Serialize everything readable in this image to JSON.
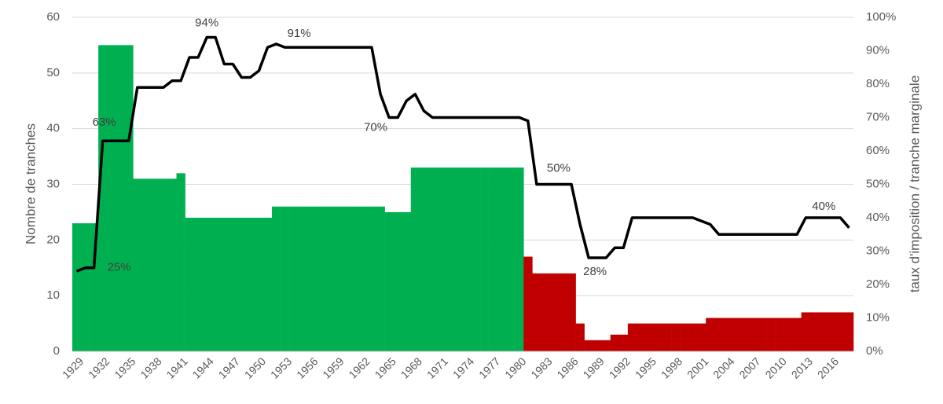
{
  "chart_data": {
    "type": "bar",
    "y_label": "Nombre de tranches",
    "y2_label": "taux d'imposition / tranche marginale",
    "categories": [
      "1929",
      null,
      null,
      "1932",
      null,
      null,
      "1935",
      null,
      null,
      "1938",
      null,
      null,
      "1941",
      null,
      null,
      "1944",
      null,
      null,
      "1947",
      null,
      null,
      "1950",
      null,
      null,
      "1953",
      null,
      null,
      "1956",
      null,
      null,
      "1959",
      null,
      null,
      "1962",
      null,
      null,
      "1965",
      null,
      null,
      "1968",
      null,
      null,
      "1971",
      null,
      null,
      "1974",
      null,
      null,
      "1977",
      null,
      null,
      "1980",
      null,
      null,
      "1983",
      null,
      null,
      "1986",
      null,
      null,
      "1989",
      null,
      null,
      "1992",
      null,
      null,
      "1995",
      null,
      null,
      "1998",
      null,
      null,
      "2001",
      null,
      null,
      "2004",
      null,
      null,
      "2007",
      null,
      null,
      "2010",
      null,
      null,
      "2013",
      null,
      null,
      "2016",
      null,
      null
    ],
    "ylim": [
      0,
      60
    ],
    "yticks": [
      0,
      10,
      20,
      30,
      40,
      50,
      60
    ],
    "y2lim": [
      0,
      100
    ],
    "y2ticks": [
      {
        "value": 0,
        "label": "0%"
      },
      {
        "value": 10,
        "label": "10%"
      },
      {
        "value": 20,
        "label": "20%"
      },
      {
        "value": 30,
        "label": "30%"
      },
      {
        "value": 40,
        "label": "40%"
      },
      {
        "value": 50,
        "label": "50%"
      },
      {
        "value": 60,
        "label": "60%"
      },
      {
        "value": 70,
        "label": "70%"
      },
      {
        "value": 80,
        "label": "80%"
      },
      {
        "value": 90,
        "label": "90%"
      },
      {
        "value": 100,
        "label": "100%"
      }
    ],
    "grid": true,
    "series": [
      {
        "type": "bar",
        "color": "#00b050",
        "values": [
          23,
          23,
          23,
          55,
          55,
          55,
          55,
          31,
          31,
          31,
          31,
          31,
          32,
          24,
          24,
          24,
          24,
          24,
          24,
          24,
          24,
          24,
          24,
          26,
          26,
          26,
          26,
          26,
          26,
          26,
          26,
          26,
          26,
          26,
          26,
          26,
          25,
          25,
          25,
          33,
          33,
          33,
          33,
          33,
          33,
          33,
          33,
          33,
          33,
          33,
          33,
          33,
          null,
          null,
          null,
          null,
          null,
          null,
          null,
          null,
          null,
          null,
          null,
          null,
          null,
          null,
          null,
          null,
          null,
          null,
          null,
          null,
          null,
          null,
          null,
          null,
          null,
          null,
          null,
          null,
          null,
          null,
          null,
          null,
          null,
          null,
          null,
          null,
          null,
          null
        ]
      },
      {
        "type": "bar",
        "color": "#c00000",
        "values": [
          null,
          null,
          null,
          null,
          null,
          null,
          null,
          null,
          null,
          null,
          null,
          null,
          null,
          null,
          null,
          null,
          null,
          null,
          null,
          null,
          null,
          null,
          null,
          null,
          null,
          null,
          null,
          null,
          null,
          null,
          null,
          null,
          null,
          null,
          null,
          null,
          null,
          null,
          null,
          null,
          null,
          null,
          null,
          null,
          null,
          null,
          null,
          null,
          null,
          null,
          null,
          null,
          17,
          14,
          14,
          14,
          14,
          14,
          5,
          2,
          2,
          2,
          3,
          3,
          5,
          5,
          5,
          5,
          5,
          5,
          5,
          5,
          5,
          6,
          6,
          6,
          6,
          6,
          6,
          6,
          6,
          6,
          6,
          6,
          7,
          7,
          7,
          7,
          7,
          7
        ]
      },
      {
        "type": "line",
        "axis": "y2",
        "color": "#000000",
        "values": [
          24,
          25,
          25,
          63,
          63,
          63,
          63,
          79,
          79,
          79,
          79,
          81,
          81,
          88,
          88,
          94,
          94,
          86,
          86,
          82,
          82,
          84,
          91,
          92,
          91,
          91,
          91,
          91,
          91,
          91,
          91,
          91,
          91,
          91,
          91,
          77,
          70,
          70,
          75,
          77,
          72,
          70,
          70,
          70,
          70,
          70,
          70,
          70,
          70,
          70,
          70,
          70,
          69,
          50,
          50,
          50,
          50,
          50,
          38,
          28,
          28,
          28,
          31,
          31,
          40,
          40,
          40,
          40,
          40,
          40,
          40,
          40,
          39,
          38,
          35,
          35,
          35,
          35,
          35,
          35,
          35,
          35,
          35,
          35,
          40,
          40,
          40,
          40,
          40,
          37
        ],
        "value_labels": [
          null,
          null,
          "25%",
          "63%",
          null,
          null,
          null,
          null,
          null,
          null,
          null,
          null,
          null,
          null,
          null,
          "94%",
          null,
          null,
          null,
          null,
          null,
          null,
          null,
          null,
          "91%",
          null,
          null,
          null,
          null,
          null,
          null,
          null,
          null,
          null,
          null,
          null,
          "70%",
          null,
          null,
          null,
          null,
          null,
          null,
          null,
          null,
          null,
          null,
          null,
          null,
          null,
          null,
          null,
          null,
          "50%",
          null,
          null,
          null,
          null,
          null,
          "28%",
          null,
          null,
          null,
          null,
          null,
          null,
          null,
          null,
          null,
          null,
          null,
          null,
          null,
          null,
          null,
          null,
          null,
          null,
          null,
          null,
          null,
          null,
          null,
          null,
          null,
          "40%",
          null,
          null,
          null,
          null
        ]
      }
    ]
  }
}
